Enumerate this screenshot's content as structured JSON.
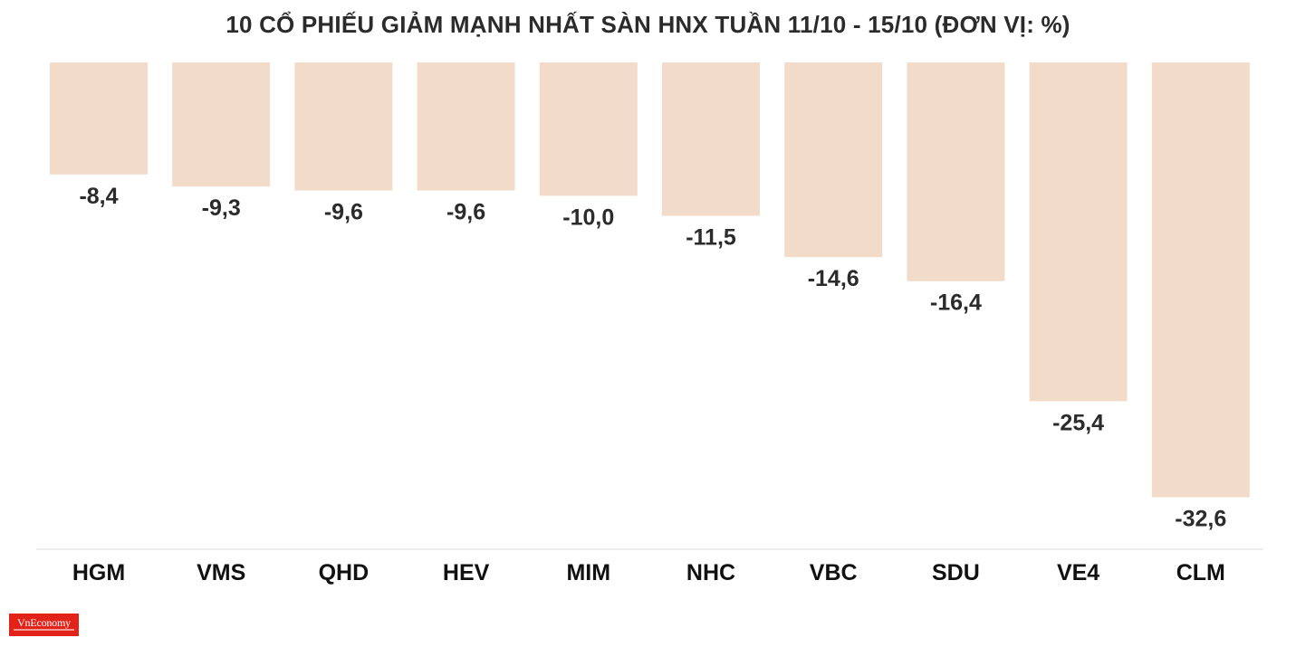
{
  "chart_data": {
    "type": "bar",
    "title": "10 CỔ PHIẾU GIẢM MẠNH NHẤT SÀN HNX TUẦN 11/10 - 15/10 (ĐƠN VỊ: %)",
    "categories": [
      "HGM",
      "VMS",
      "QHD",
      "HEV",
      "MIM",
      "NHC",
      "VBC",
      "SDU",
      "VE4",
      "CLM"
    ],
    "values": [
      -8.4,
      -9.3,
      -9.6,
      -9.6,
      -10.0,
      -11.5,
      -14.6,
      -16.4,
      -25.4,
      -32.6
    ],
    "value_labels": [
      "-8,4",
      "-9,3",
      "-9,6",
      "-9,6",
      "-10,0",
      "-11,5",
      "-14,6",
      "-16,4",
      "-25,4",
      "-32,6"
    ],
    "xlabel": "",
    "ylabel": "",
    "ylim": [
      -36.5,
      0
    ],
    "grid": false,
    "colors": {
      "bar": "#f2dcc9",
      "text": "#2b2b2b",
      "axis": "#dddddd"
    }
  },
  "logo": {
    "name": "vneconomy-logo",
    "text": "VnEconomy",
    "color": "#e2231a"
  }
}
